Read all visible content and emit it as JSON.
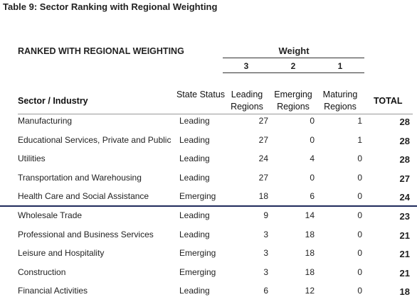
{
  "title": "Table 9: Sector Ranking with Regional Weighting",
  "table": {
    "caption": "RANKED WITH REGIONAL WEIGHTING",
    "weight_label": "Weight",
    "weights": [
      "3",
      "2",
      "1"
    ],
    "columns": [
      "Sector / Industry",
      "State Status",
      "Leading Regions",
      "Emerging Regions",
      "Maturing Regions",
      "TOTAL"
    ],
    "rows": [
      [
        "Manufacturing",
        "Leading",
        "27",
        "0",
        "1",
        "28"
      ],
      [
        "Educational Services, Private and Public",
        "Leading",
        "27",
        "0",
        "1",
        "28"
      ],
      [
        "Utilities",
        "Leading",
        "24",
        "4",
        "0",
        "28"
      ],
      [
        "Transportation and Warehousing",
        "Leading",
        "27",
        "0",
        "0",
        "27"
      ],
      [
        "Health Care and Social Assistance",
        "Emerging",
        "18",
        "6",
        "0",
        "24"
      ],
      [
        "Wholesale Trade",
        "Leading",
        "9",
        "14",
        "0",
        "23"
      ],
      [
        "Professional and Business Services",
        "Leading",
        "3",
        "18",
        "0",
        "21"
      ],
      [
        "Leisure and Hospitality",
        "Emerging",
        "3",
        "18",
        "0",
        "21"
      ],
      [
        "Construction",
        "Emerging",
        "3",
        "18",
        "0",
        "21"
      ],
      [
        "Financial Activities",
        "Leading",
        "6",
        "12",
        "0",
        "18"
      ]
    ]
  }
}
